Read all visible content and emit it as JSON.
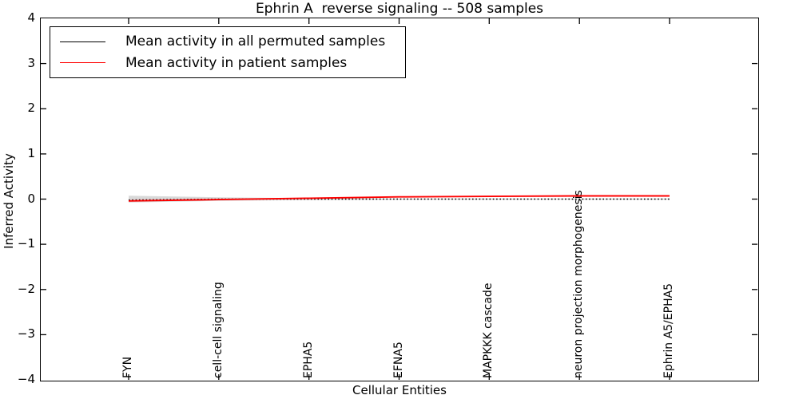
{
  "title": "Ephrin A  reverse signaling -- 508 samples",
  "axes": {
    "xlabel": "Cellular Entities",
    "ylabel": "Inferred Activity",
    "ytick_labels": [
      "4",
      "3",
      "2",
      "1",
      "0",
      "−1",
      "−2",
      "−3",
      "−4"
    ]
  },
  "legend": {
    "items": [
      {
        "label": "Mean activity in all permuted samples",
        "color": "#000000"
      },
      {
        "label": "Mean activity in patient samples",
        "color": "#ff0000"
      }
    ]
  },
  "chart_data": {
    "type": "line",
    "title": "Ephrin A  reverse signaling -- 508 samples",
    "xlabel": "Cellular Entities",
    "ylabel": "Inferred Activity",
    "ylim": [
      -4,
      4
    ],
    "yticks": [
      4,
      3,
      2,
      1,
      0,
      -1,
      -2,
      -3,
      -4
    ],
    "grid": false,
    "legend_position": "upper left",
    "categories": [
      "FYN",
      "cell-cell signaling",
      "EPHA5",
      "EFNA5",
      "MAPKKK cascade",
      "neuron projection morphogenesis",
      "Ephrin A5/EPHA5"
    ],
    "series": [
      {
        "name": "Mean activity in all permuted samples",
        "color": "#000000",
        "style": "dotted",
        "values": [
          -0.02,
          0.0,
          0.0,
          0.0,
          0.0,
          0.0,
          0.0
        ]
      },
      {
        "name": "Mean activity in patient samples",
        "color": "#ff0000",
        "style": "solid",
        "values": [
          -0.04,
          -0.01,
          0.02,
          0.05,
          0.06,
          0.07,
          0.07
        ]
      }
    ],
    "band": {
      "center": 0,
      "color": "#d9d9d9",
      "half_widths": [
        0.075,
        0.04,
        0.022,
        0.015,
        0.013,
        0.013,
        0.013
      ]
    }
  }
}
